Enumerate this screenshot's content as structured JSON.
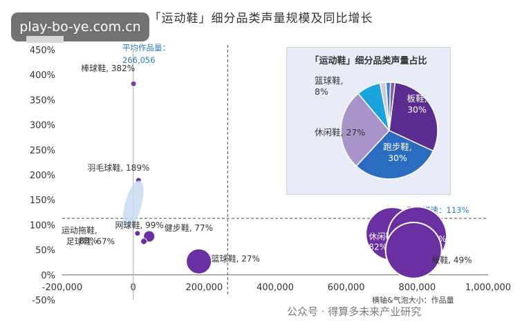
{
  "watermark_site": "play-bo-ye.com.cn",
  "bottom_watermark": "公众号 · 得算多未来产业研究",
  "chart_data": [
    {
      "type": "scatter",
      "title": "「运动鞋」细分品类声量规模及同比增长",
      "xlabel": "横轴&气泡大小：作品量",
      "ylabel": "",
      "xlim": [
        -200000,
        1000000
      ],
      "ylim": [
        -50,
        450
      ],
      "x_ticks": [
        "-200,000",
        "0",
        "200,000",
        "400,000",
        "600,000",
        "800,000",
        "1,000,000"
      ],
      "y_ticks": [
        "-50%",
        "0%",
        "50%",
        "100%",
        "150%",
        "200%",
        "250%",
        "300%",
        "350%",
        "400%",
        "450%"
      ],
      "reference_lines": [
        {
          "axis": "x",
          "value": 266056,
          "label": "平均作品量：",
          "value_label": "266,056"
        },
        {
          "axis": "y",
          "value": 113,
          "label": "平均增速：113%"
        }
      ],
      "points": [
        {
          "name": "棒球鞋",
          "label": "棒球鞋, 382%",
          "x": 1000,
          "y": 382
        },
        {
          "name": "羽毛球鞋",
          "label": "羽毛球鞋, 189%",
          "x": 15000,
          "y": 189
        },
        {
          "name": "网球鞋",
          "label": "网球鞋, 99%",
          "x": 8000,
          "y": 99
        },
        {
          "name": "运动拖鞋",
          "label": "运动拖鞋,\n83%",
          "x": 12000,
          "y": 83
        },
        {
          "name": "健步鞋",
          "label": "健步鞋, 77%",
          "x": 45000,
          "y": 77
        },
        {
          "name": "足球鞋",
          "label": "足球鞋, 67%",
          "x": 30000,
          "y": 67
        },
        {
          "name": "篮球鞋",
          "label": "篮球鞋, 27%",
          "x": 185000,
          "y": 27
        },
        {
          "name": "休闲鞋",
          "label": "休闲鞋,\n82%",
          "x": 730000,
          "y": 82
        },
        {
          "name": "跑步鞋",
          "label": "跑步鞋, 77%",
          "x": 800000,
          "y": 77
        },
        {
          "name": "板鞋",
          "label": "板鞋, 49%",
          "x": 790000,
          "y": 49
        }
      ],
      "bubble_weights": [
        6,
        8,
        55,
        5,
        18,
        10,
        40,
        85,
        95,
        90
      ]
    },
    {
      "type": "pie",
      "title": "「运动鞋」细分品类声量占比",
      "slices": [
        {
          "name": "板鞋",
          "value": 30,
          "label": "板鞋,\n30%",
          "color": "#5b2d90"
        },
        {
          "name": "跑步鞋",
          "value": 30,
          "label": "跑步鞋,\n30%",
          "color": "#2a6cc0"
        },
        {
          "name": "休闲鞋",
          "value": 27,
          "label": "休闲鞋, 27%",
          "color": "#a894c8"
        },
        {
          "name": "篮球鞋",
          "value": 8,
          "label": "篮球鞋,\n8%",
          "color": "#1aa3dc"
        },
        {
          "name": "其他1",
          "value": 2,
          "label": "",
          "color": "#c9ced8"
        },
        {
          "name": "其他2",
          "value": 1.5,
          "label": "",
          "color": "#3d7fd0"
        },
        {
          "name": "其他3",
          "value": 1.5,
          "label": "",
          "color": "#7f5ab0"
        }
      ]
    }
  ]
}
